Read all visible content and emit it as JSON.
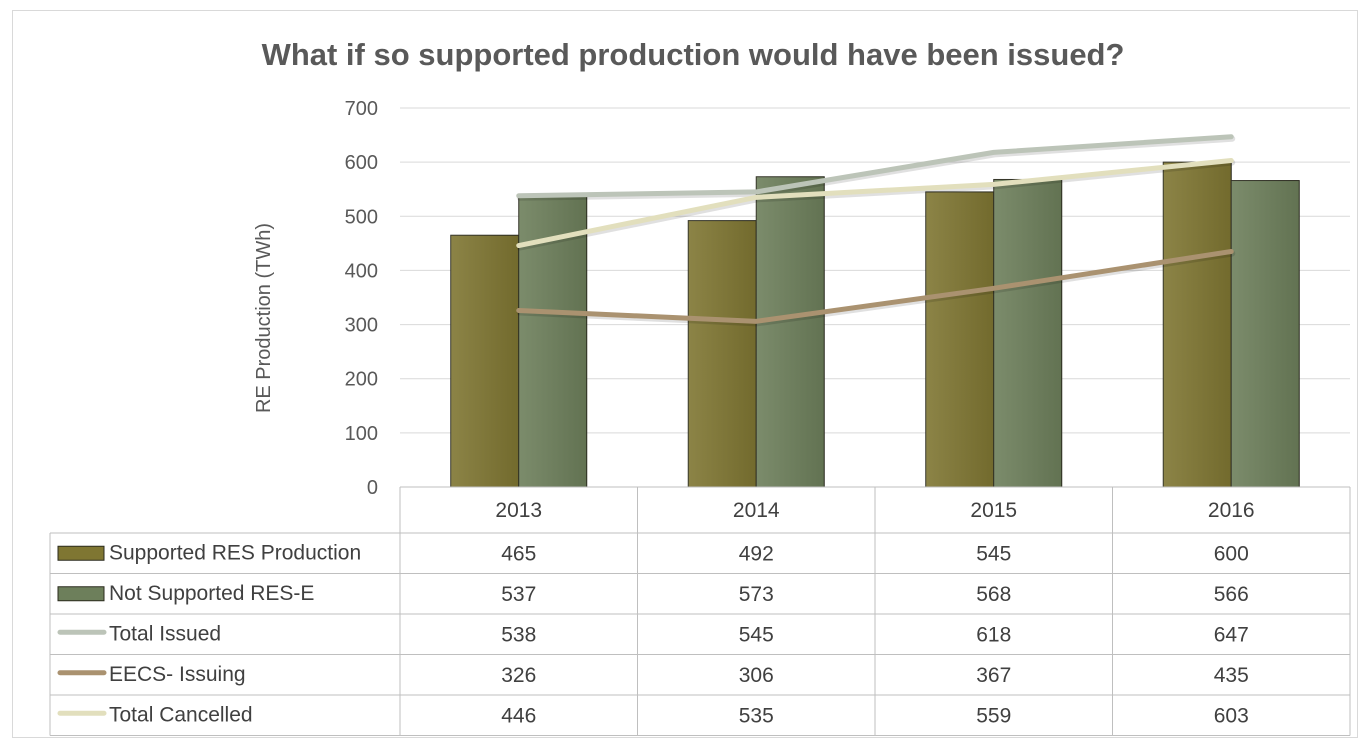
{
  "chart_data": {
    "type": "bar",
    "title": "What if so supported production would have been issued?",
    "ylabel": "RE Production (TWh)",
    "xlabel": "",
    "ylim": [
      0,
      700
    ],
    "yticks": [
      0,
      100,
      200,
      300,
      400,
      500,
      600,
      700
    ],
    "categories": [
      "2013",
      "2014",
      "2015",
      "2016"
    ],
    "grid": true,
    "legend": "data-table",
    "series": [
      {
        "name": "Supported RES Production",
        "kind": "bar",
        "color": "#7f7632",
        "values": [
          465,
          492,
          545,
          600
        ]
      },
      {
        "name": "Not Supported RES-E",
        "kind": "bar",
        "color": "#6d7f5b",
        "values": [
          537,
          573,
          568,
          566
        ]
      },
      {
        "name": "Total Issued",
        "kind": "line",
        "color": "#bcc4b8",
        "values": [
          538,
          545,
          618,
          647
        ]
      },
      {
        "name": "EECS- Issuing",
        "kind": "line",
        "color": "#aa9270",
        "values": [
          326,
          306,
          367,
          435
        ]
      },
      {
        "name": "Total Cancelled",
        "kind": "line",
        "color": "#e2dfbd",
        "values": [
          446,
          535,
          559,
          603
        ]
      }
    ]
  }
}
